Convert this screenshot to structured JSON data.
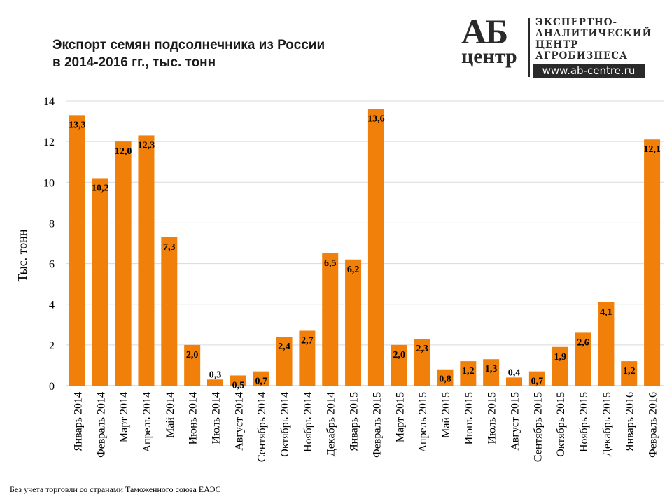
{
  "title_line1": "Экспорт семян подсолнечника из России",
  "title_line2": "в 2014-2016 гг., тыс. тонн",
  "logo": {
    "mark_top": "АБ",
    "mark_bottom": "центр",
    "lines": [
      "ЭКСПЕРТНО-",
      "АНАЛИТИЧЕСКИЙ",
      "ЦЕНТР",
      "АГРОБИЗНЕСА"
    ],
    "url": "www.ab-centre.ru"
  },
  "footnote": "Без учета торговли со странами Таможенного союза ЕАЭС",
  "colors": {
    "bar": "#F0800A",
    "grid": "#D9D9D9"
  },
  "chart_data": {
    "type": "bar",
    "title": "Экспорт семян подсолнечника из России в 2014-2016 гг., тыс. тонн",
    "xlabel": "",
    "ylabel": "Тыс. тонн",
    "ylim": [
      0,
      14
    ],
    "yticks": [
      0,
      2,
      4,
      6,
      8,
      10,
      12,
      14
    ],
    "grid": true,
    "categories": [
      "Январь 2014",
      "Февраль 2014",
      "Март 2014",
      "Апрель 2014",
      "Май 2014",
      "Июнь 2014",
      "Июль 2014",
      "Август 2014",
      "Сентябрь 2014",
      "Октябрь 2014",
      "Ноябрь 2014",
      "Декабрь 2014",
      "Январь 2015",
      "Февраль 2015",
      "Март 2015",
      "Апрель 2015",
      "Май 2015",
      "Июнь 2015",
      "Июль 2015",
      "Август 2015",
      "Сентябрь 2015",
      "Октябрь 2015",
      "Ноябрь 2015",
      "Декабрь 2015",
      "Январь 2016",
      "Февраль 2016"
    ],
    "values": [
      13.3,
      10.2,
      12.0,
      12.3,
      7.3,
      2.0,
      0.3,
      0.5,
      0.7,
      2.4,
      2.7,
      6.5,
      6.2,
      13.6,
      2.0,
      2.3,
      0.8,
      1.2,
      1.3,
      0.4,
      0.7,
      1.9,
      2.6,
      4.1,
      1.2,
      12.1
    ],
    "labels": [
      "13,3",
      "10,2",
      "12,0",
      "12,3",
      "7,3",
      "2,0",
      "0,3",
      "0,5",
      "0,7",
      "2,4",
      "2,7",
      "6,5",
      "6,2",
      "13,6",
      "2,0",
      "2,3",
      "0,8",
      "1,2",
      "1,3",
      "0,4",
      "0,7",
      "1,9",
      "2,6",
      "4,1",
      "1,2",
      "12,1"
    ]
  }
}
